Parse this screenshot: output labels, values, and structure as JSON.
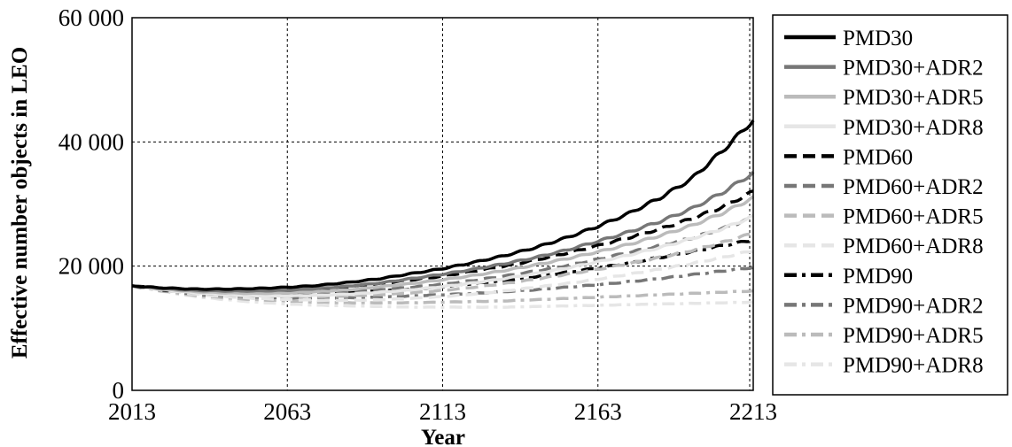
{
  "chart_data": {
    "type": "line",
    "title": "",
    "xlabel": "Year",
    "ylabel": "Effective number objects in LEO",
    "xlim": [
      2013,
      2213
    ],
    "ylim": [
      0,
      60000
    ],
    "x_ticks": [
      2013,
      2063,
      2113,
      2163,
      2213
    ],
    "x_tick_labels": [
      "2013",
      "2063",
      "2113",
      "2163",
      "2213"
    ],
    "y_ticks": [
      0,
      20000,
      40000,
      60000
    ],
    "y_tick_labels": [
      "0",
      "20 000",
      "40 000",
      "60 000"
    ],
    "grid": true,
    "legend_position": "right",
    "x": [
      2013,
      2023,
      2033,
      2043,
      2053,
      2063,
      2073,
      2083,
      2093,
      2103,
      2113,
      2123,
      2133,
      2143,
      2153,
      2163,
      2173,
      2183,
      2193,
      2203,
      2213
    ],
    "series": [
      {
        "name": "PMD30",
        "color": "#000000",
        "dash": "solid",
        "values": [
          16800,
          16500,
          16300,
          16300,
          16400,
          16600,
          16900,
          17400,
          18000,
          18800,
          19600,
          20600,
          21700,
          23000,
          24600,
          26400,
          28500,
          31000,
          34000,
          38500,
          43500
        ]
      },
      {
        "name": "PMD30+ADR2",
        "color": "#777777",
        "dash": "solid",
        "values": [
          16800,
          16400,
          16100,
          16000,
          16000,
          16100,
          16400,
          16800,
          17300,
          18000,
          18700,
          19500,
          20400,
          21400,
          22600,
          24000,
          25500,
          27200,
          29200,
          31800,
          35000
        ]
      },
      {
        "name": "PMD30+ADR5",
        "color": "#bbbbbb",
        "dash": "solid",
        "values": [
          16800,
          16300,
          15900,
          15700,
          15600,
          15700,
          15900,
          16200,
          16700,
          17200,
          17800,
          18500,
          19300,
          20200,
          21200,
          22300,
          23500,
          24900,
          26500,
          28500,
          31000
        ]
      },
      {
        "name": "PMD30+ADR8",
        "color": "#e6e6e6",
        "dash": "solid",
        "values": [
          16800,
          16200,
          15700,
          15400,
          15200,
          15200,
          15300,
          15500,
          15800,
          16200,
          16700,
          17300,
          18000,
          18800,
          19700,
          20700,
          21800,
          23000,
          24400,
          26000,
          28000
        ]
      },
      {
        "name": "PMD60",
        "color": "#000000",
        "dash": "dash",
        "values": [
          16800,
          16400,
          16100,
          16000,
          16000,
          16100,
          16300,
          16700,
          17200,
          17800,
          18400,
          19200,
          20000,
          21000,
          22100,
          23300,
          24600,
          26000,
          27600,
          29500,
          32000
        ]
      },
      {
        "name": "PMD60+ADR2",
        "color": "#777777",
        "dash": "dash",
        "values": [
          16800,
          16300,
          15900,
          15700,
          15600,
          15600,
          15700,
          15900,
          16200,
          16600,
          17100,
          17700,
          18400,
          19200,
          20100,
          21100,
          22200,
          23300,
          24500,
          26000,
          27800
        ]
      },
      {
        "name": "PMD60+ADR5",
        "color": "#bbbbbb",
        "dash": "dash",
        "values": [
          16800,
          16200,
          15700,
          15400,
          15200,
          15100,
          15100,
          15200,
          15400,
          15700,
          16100,
          16600,
          17200,
          17900,
          18700,
          19500,
          20400,
          21400,
          22500,
          23800,
          25300
        ]
      },
      {
        "name": "PMD60+ADR8",
        "color": "#e6e6e6",
        "dash": "dash",
        "values": [
          16800,
          16100,
          15500,
          15100,
          14800,
          14600,
          14500,
          14500,
          14600,
          14800,
          15100,
          15500,
          16000,
          16600,
          17200,
          17900,
          18700,
          19500,
          20400,
          21400,
          22500
        ]
      },
      {
        "name": "PMD90",
        "color": "#000000",
        "dash": "dashdot",
        "values": [
          16800,
          16200,
          15800,
          15500,
          15400,
          15400,
          15500,
          15700,
          16000,
          16300,
          16700,
          17200,
          17700,
          18300,
          19000,
          19700,
          20500,
          21400,
          22300,
          23300,
          24200
        ]
      },
      {
        "name": "PMD90+ADR2",
        "color": "#777777",
        "dash": "dashdot",
        "values": [
          16800,
          16100,
          15500,
          15200,
          15000,
          14900,
          14900,
          14900,
          15000,
          15200,
          15400,
          15600,
          15900,
          16200,
          16600,
          17000,
          17500,
          18000,
          18600,
          19200,
          19800
        ]
      },
      {
        "name": "PMD90+ADR5",
        "color": "#bbbbbb",
        "dash": "dashdot",
        "values": [
          16800,
          16000,
          15300,
          14900,
          14600,
          14400,
          14200,
          14100,
          14100,
          14100,
          14200,
          14300,
          14400,
          14600,
          14800,
          15000,
          15200,
          15400,
          15600,
          15800,
          16000
        ]
      },
      {
        "name": "PMD90+ADR8",
        "color": "#e6e6e6",
        "dash": "dashdot",
        "values": [
          16800,
          15900,
          15100,
          14600,
          14200,
          13900,
          13700,
          13600,
          13500,
          13400,
          13400,
          13400,
          13400,
          13500,
          13600,
          13700,
          13800,
          13900,
          14000,
          14100,
          14200
        ]
      }
    ]
  }
}
